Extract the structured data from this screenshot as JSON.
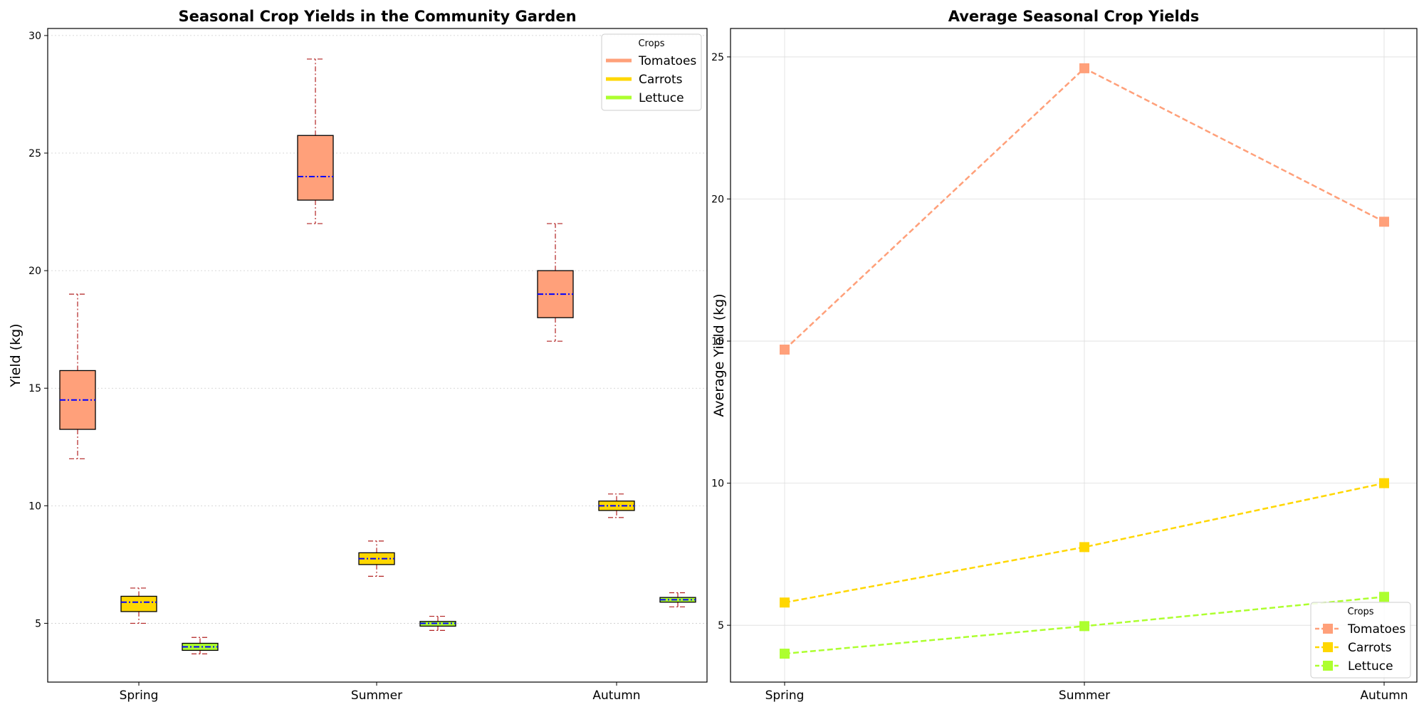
{
  "chart_data": [
    {
      "type": "box",
      "title": "Seasonal Crop Yields in the Community Garden",
      "xlabel": "",
      "ylabel": "Yield (kg)",
      "ylim": [
        2.5,
        30.3
      ],
      "yticks": [
        5,
        10,
        15,
        20,
        25,
        30
      ],
      "categories": [
        "Spring",
        "Summer",
        "Autumn"
      ],
      "grid": "horizontal dotted",
      "legend": {
        "title": "Crops",
        "placement": "top-right",
        "entries": [
          "Tomatoes",
          "Carrots",
          "Lettuce"
        ]
      },
      "series": [
        {
          "name": "Tomatoes",
          "color": "#FFA07A",
          "boxes": [
            {
              "min": 12,
              "q1": 13.25,
              "median": 14.5,
              "q3": 15.75,
              "max": 19
            },
            {
              "min": 22,
              "q1": 23,
              "median": 24,
              "q3": 25.75,
              "max": 29
            },
            {
              "min": 17,
              "q1": 18,
              "median": 19,
              "q3": 20,
              "max": 22
            }
          ]
        },
        {
          "name": "Carrots",
          "color": "#FFD700",
          "boxes": [
            {
              "min": 5,
              "q1": 5.5,
              "median": 5.9,
              "q3": 6.15,
              "max": 6.5
            },
            {
              "min": 7,
              "q1": 7.5,
              "median": 7.75,
              "q3": 8,
              "max": 8.5
            },
            {
              "min": 9.5,
              "q1": 9.8,
              "median": 10,
              "q3": 10.2,
              "max": 10.5
            }
          ]
        },
        {
          "name": "Lettuce",
          "color": "#ADFF2F",
          "boxes": [
            {
              "min": 3.7,
              "q1": 3.85,
              "median": 4,
              "q3": 4.15,
              "max": 4.4
            },
            {
              "min": 4.7,
              "q1": 4.88,
              "median": 5,
              "q3": 5.08,
              "max": 5.3
            },
            {
              "min": 5.7,
              "q1": 5.9,
              "median": 6,
              "q3": 6.1,
              "max": 6.3
            }
          ]
        }
      ]
    },
    {
      "type": "line",
      "title": "Average Seasonal Crop Yields",
      "xlabel": "",
      "ylabel": "Average Yield (kg)",
      "ylim": [
        3,
        26
      ],
      "yticks": [
        5,
        10,
        15,
        20,
        25
      ],
      "categories": [
        "Spring",
        "Summer",
        "Autumn"
      ],
      "grid": "both",
      "legend": {
        "title": "Crops",
        "placement": "bottom-right",
        "entries": [
          "Tomatoes",
          "Carrots",
          "Lettuce"
        ]
      },
      "series": [
        {
          "name": "Tomatoes",
          "color": "#FFA07A",
          "values": [
            14.7,
            24.6,
            19.2
          ]
        },
        {
          "name": "Carrots",
          "color": "#FFD700",
          "values": [
            5.8,
            7.75,
            10
          ]
        },
        {
          "name": "Lettuce",
          "color": "#ADFF2F",
          "values": [
            4,
            4.97,
            6
          ]
        }
      ]
    }
  ]
}
